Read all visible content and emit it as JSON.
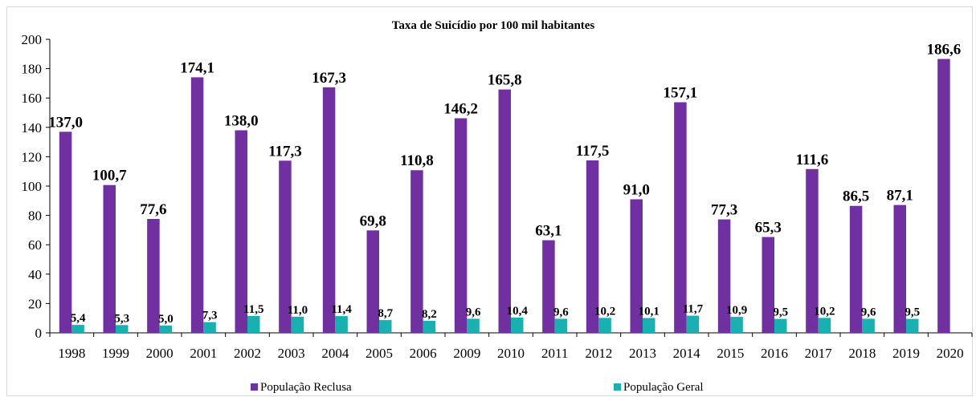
{
  "chart_data": {
    "type": "bar",
    "title": "Taxa de Suicídio por 100 mil habitantes",
    "xlabel": "",
    "ylabel": "",
    "ylim": [
      0,
      200
    ],
    "y_ticks": [
      "0",
      "20",
      "40",
      "60",
      "80",
      "100",
      "120",
      "140",
      "160",
      "180",
      "200"
    ],
    "grid": false,
    "legend_position": "bottom",
    "categories": [
      "1998",
      "1999",
      "2000",
      "2001",
      "2002",
      "2003",
      "2004",
      "2005",
      "2006",
      "2009",
      "2010",
      "2011",
      "2012",
      "2013",
      "2014",
      "2015",
      "2016",
      "2017",
      "2018",
      "2019",
      "2020"
    ],
    "series": [
      {
        "name": "População Reclusa",
        "color": "#7030a0",
        "values": [
          137.0,
          100.7,
          77.6,
          174.1,
          138.0,
          117.3,
          167.3,
          69.8,
          110.8,
          146.2,
          165.8,
          63.1,
          117.5,
          91.0,
          157.1,
          77.3,
          65.3,
          111.6,
          86.5,
          87.1,
          186.6
        ],
        "labels": [
          "137,0",
          "100,7",
          "77,6",
          "174,1",
          "138,0",
          "117,3",
          "167,3",
          "69,8",
          "110,8",
          "146,2",
          "165,8",
          "63,1",
          "117,5",
          "91,0",
          "157,1",
          "77,3",
          "65,3",
          "111,6",
          "86,5",
          "87,1",
          "186,6"
        ]
      },
      {
        "name": "População Geral",
        "color": "#1aafb0",
        "values": [
          5.4,
          5.3,
          5.0,
          7.3,
          11.5,
          11.0,
          11.4,
          8.7,
          8.2,
          9.6,
          10.4,
          9.6,
          10.2,
          10.1,
          11.7,
          10.9,
          9.5,
          10.2,
          9.6,
          9.5,
          null
        ],
        "labels": [
          "5,4",
          "5,3",
          "5,0",
          "7,3",
          "11,5",
          "11,0",
          "11,4",
          "8,7",
          "8,2",
          "9,6",
          "10,4",
          "9,6",
          "10,2",
          "10,1",
          "11,7",
          "10,9",
          "9,5",
          "10,2",
          "9,6",
          "9,5",
          ""
        ]
      }
    ]
  }
}
